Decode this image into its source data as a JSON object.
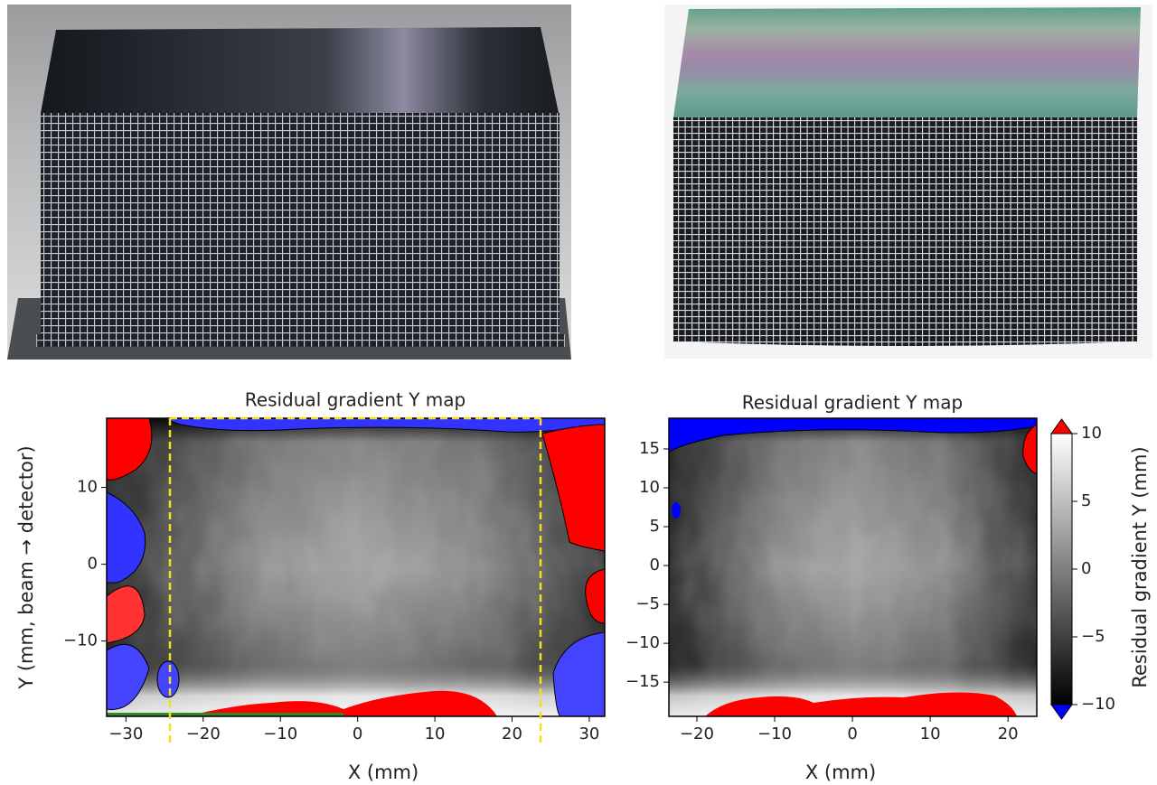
{
  "chart_data": [
    {
      "type": "heatmap",
      "title": "Residual gradient Y map",
      "x_label": "X (mm)",
      "y_label": "Y (mm, beam → detector)",
      "xlim": [
        -32.5,
        32
      ],
      "ylim": [
        -19.8,
        19
      ],
      "xticks": [
        {
          "value": -30,
          "label": "−30"
        },
        {
          "value": -20,
          "label": "−20"
        },
        {
          "value": -10,
          "label": "−10"
        },
        0,
        10,
        20,
        30
      ],
      "yticks": [
        {
          "value": -10,
          "label": "−10"
        },
        0,
        10
      ]
    },
    {
      "type": "heatmap",
      "title": "Residual gradient Y map",
      "x_label": "X (mm)",
      "xlim": [
        -23.6,
        23.7
      ],
      "ylim": [
        -19.4,
        18.95
      ],
      "xticks": [
        {
          "value": -20,
          "label": "−20"
        },
        {
          "value": -10,
          "label": "−10"
        },
        0,
        10,
        20
      ],
      "yticks": [
        {
          "value": -15,
          "label": "−15"
        },
        {
          "value": -10,
          "label": "−10"
        },
        {
          "value": -5,
          "label": "−5"
        },
        0,
        5,
        10,
        15
      ],
      "colorbar": {
        "label": "Residual gradient Y (mm)",
        "lim": [
          -10,
          10
        ],
        "ticks": [
          {
            "value": -10,
            "label": "−10"
          },
          {
            "value": -5,
            "label": "−5"
          },
          0,
          5,
          10
        ],
        "under_color": "#0000ff",
        "over_color": "#ff0000"
      }
    }
  ]
}
